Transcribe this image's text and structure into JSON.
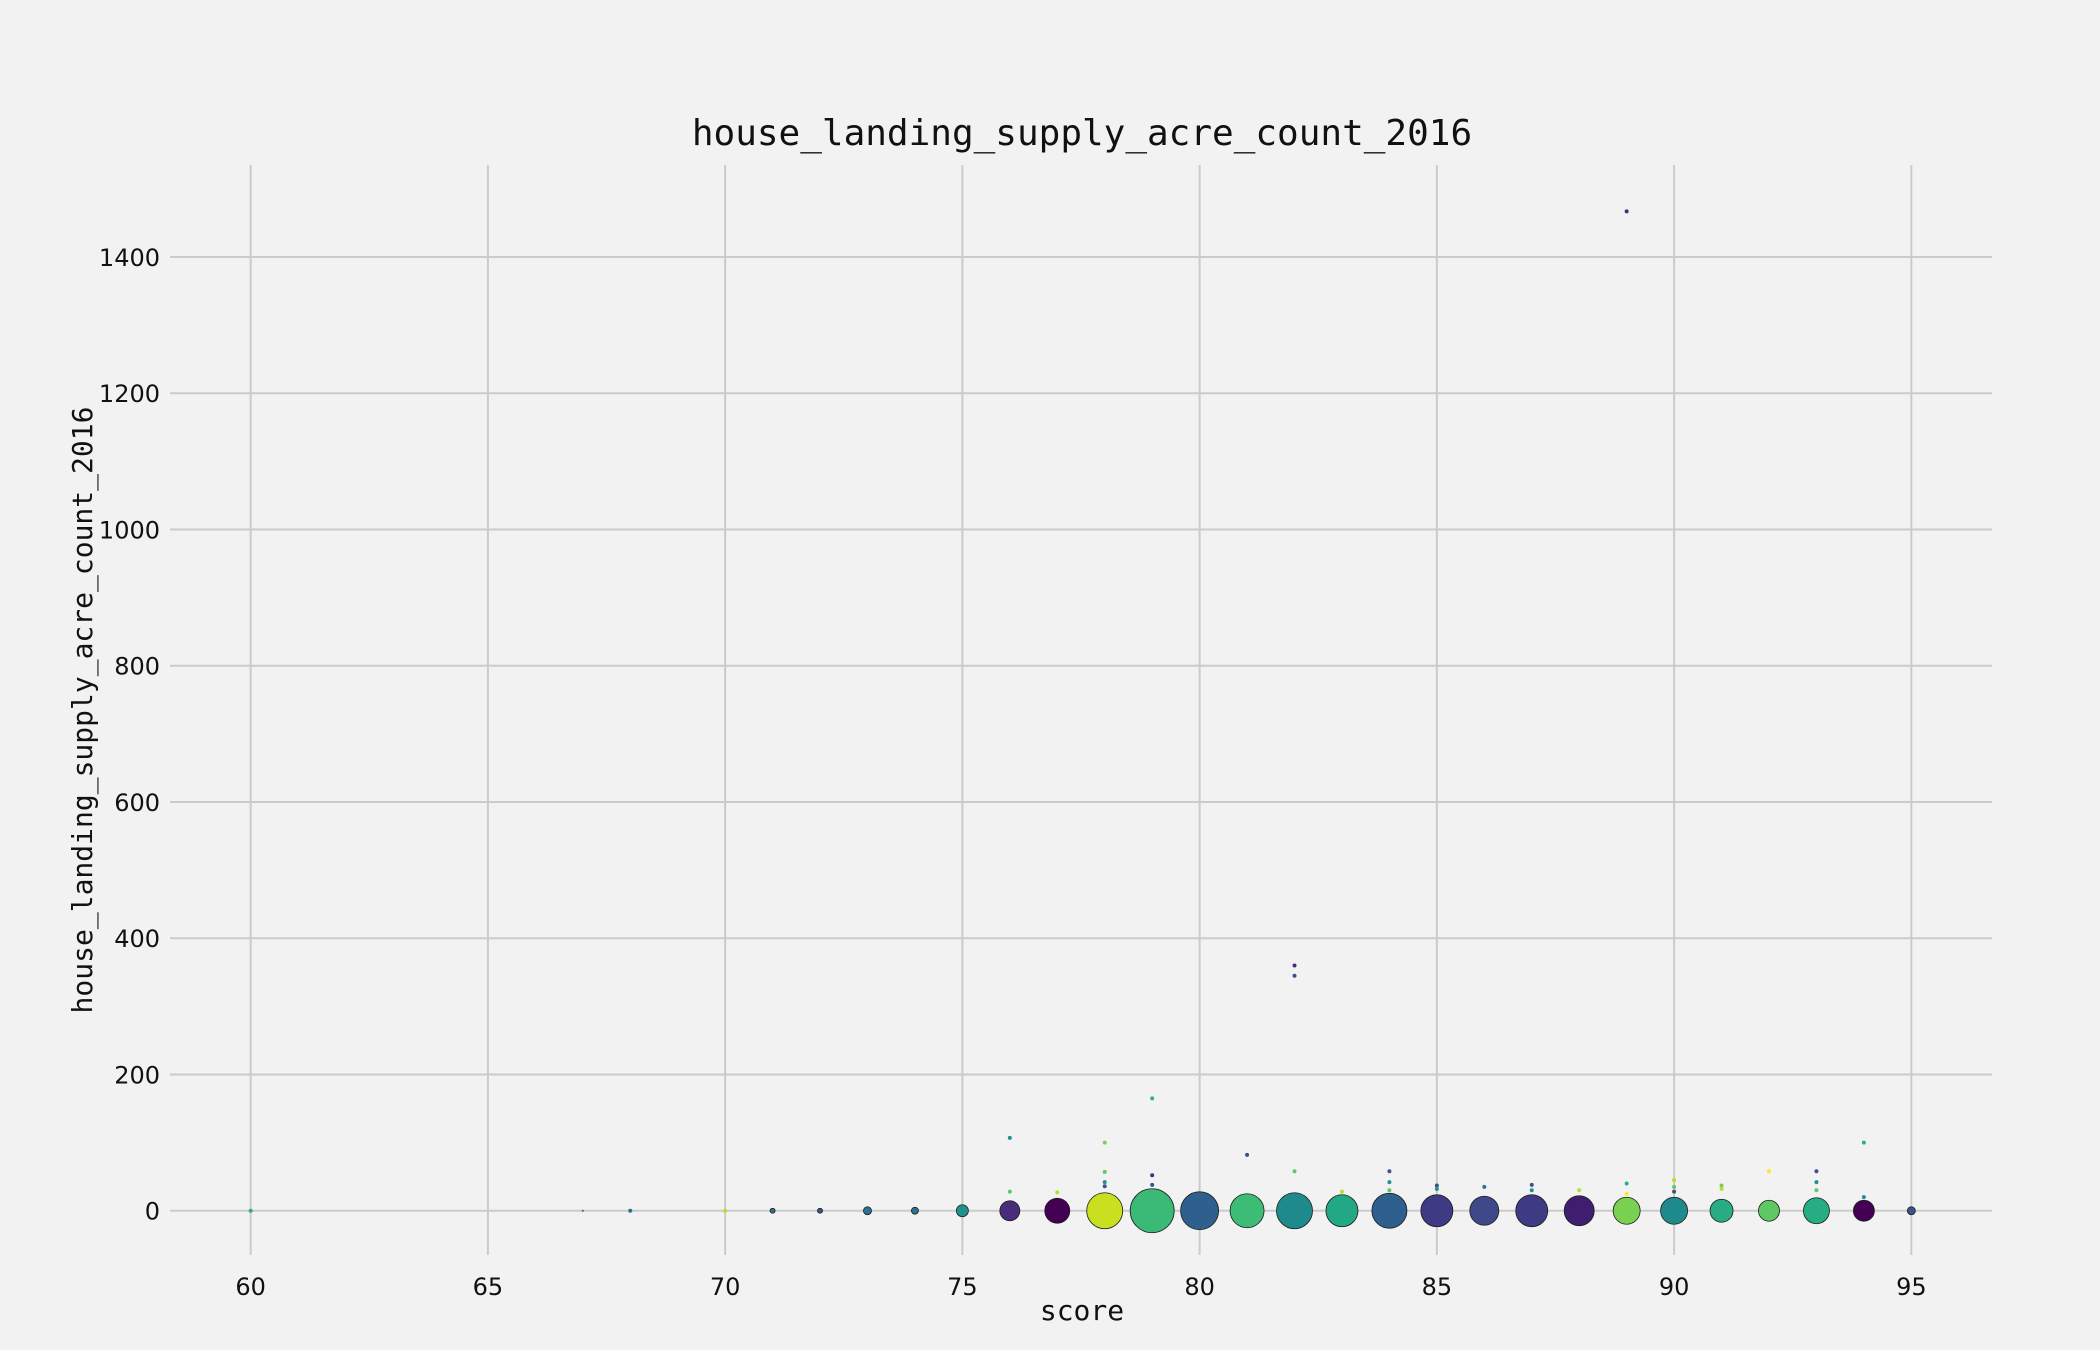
{
  "chart_data": {
    "type": "scatter",
    "title": "house_landing_supply_acre_count_2016",
    "xlabel": "score",
    "ylabel": "house_landing_supply_acre_count_2016",
    "xlim": [
      58.3,
      96.7
    ],
    "ylim": [
      -65,
      1535
    ],
    "xticks": [
      60,
      65,
      70,
      75,
      80,
      85,
      90,
      95
    ],
    "yticks": [
      0,
      200,
      400,
      600,
      800,
      1000,
      1200,
      1400
    ],
    "grid": true,
    "colormap": "viridis",
    "note": "bubble size encodes count of observations at each score",
    "series": [
      {
        "points": [
          {
            "x": 60,
            "y": 0,
            "size": 1,
            "color": "#2db27d"
          },
          {
            "x": 67,
            "y": 0,
            "size": 2,
            "color": "#3b528b"
          },
          {
            "x": 68,
            "y": 0,
            "size": 1,
            "color": "#2c728e"
          },
          {
            "x": 70,
            "y": 0,
            "size": 1,
            "color": "#b5de2b"
          },
          {
            "x": 71,
            "y": 0,
            "size": 5,
            "color": "#2c728e"
          },
          {
            "x": 72,
            "y": 0,
            "size": 5,
            "color": "#3b528b"
          },
          {
            "x": 73,
            "y": 0,
            "size": 8,
            "color": "#2c728e"
          },
          {
            "x": 74,
            "y": 0,
            "size": 7,
            "color": "#2c728e"
          },
          {
            "x": 75,
            "y": 0,
            "size": 12,
            "color": "#21918c"
          },
          {
            "x": 76,
            "y": 0,
            "size": 20,
            "color": "#472d7b"
          },
          {
            "x": 77,
            "y": 0,
            "size": 25,
            "color": "#440154"
          },
          {
            "x": 78,
            "y": 0,
            "size": 36,
            "color": "#c8e020"
          },
          {
            "x": 79,
            "y": 0,
            "size": 44,
            "color": "#3aba76"
          },
          {
            "x": 80,
            "y": 0,
            "size": 38,
            "color": "#2f5f8c"
          },
          {
            "x": 81,
            "y": 0,
            "size": 34,
            "color": "#3cbc74"
          },
          {
            "x": 82,
            "y": 0,
            "size": 36,
            "color": "#1f8a8c"
          },
          {
            "x": 83,
            "y": 0,
            "size": 32,
            "color": "#22a884"
          },
          {
            "x": 84,
            "y": 0,
            "size": 35,
            "color": "#2f5f8c"
          },
          {
            "x": 85,
            "y": 0,
            "size": 32,
            "color": "#3e3a83"
          },
          {
            "x": 86,
            "y": 0,
            "size": 29,
            "color": "#3e4989"
          },
          {
            "x": 87,
            "y": 0,
            "size": 32,
            "color": "#3e3a83"
          },
          {
            "x": 88,
            "y": 0,
            "size": 30,
            "color": "#3f1e70"
          },
          {
            "x": 89,
            "y": 0,
            "size": 27,
            "color": "#7ad151"
          },
          {
            "x": 90,
            "y": 0,
            "size": 27,
            "color": "#1f8a8c"
          },
          {
            "x": 91,
            "y": 0,
            "size": 23,
            "color": "#27ad81"
          },
          {
            "x": 92,
            "y": 0,
            "size": 21,
            "color": "#5ec962"
          },
          {
            "x": 93,
            "y": 0,
            "size": 26,
            "color": "#27ad81"
          },
          {
            "x": 94,
            "y": 0,
            "size": 21,
            "color": "#440154"
          },
          {
            "x": 95,
            "y": 0,
            "size": 8,
            "color": "#3b528b"
          },
          {
            "x": 76,
            "y": 107,
            "size": 1,
            "color": "#21918c"
          },
          {
            "x": 76,
            "y": 28,
            "size": 1,
            "color": "#5ec962"
          },
          {
            "x": 77,
            "y": 27,
            "size": 1,
            "color": "#b5de2b"
          },
          {
            "x": 78,
            "y": 100,
            "size": 1,
            "color": "#7ad151"
          },
          {
            "x": 78,
            "y": 57,
            "size": 1,
            "color": "#5ec962"
          },
          {
            "x": 78,
            "y": 42,
            "size": 1,
            "color": "#21918c"
          },
          {
            "x": 78,
            "y": 36,
            "size": 1,
            "color": "#3b528b"
          },
          {
            "x": 79,
            "y": 165,
            "size": 1,
            "color": "#2db27d"
          },
          {
            "x": 79,
            "y": 52,
            "size": 1,
            "color": "#472d7b"
          },
          {
            "x": 79,
            "y": 38,
            "size": 1,
            "color": "#3b528b"
          },
          {
            "x": 81,
            "y": 82,
            "size": 1,
            "color": "#3b528b"
          },
          {
            "x": 82,
            "y": 360,
            "size": 1,
            "color": "#472d7b"
          },
          {
            "x": 82,
            "y": 345,
            "size": 1,
            "color": "#3b528b"
          },
          {
            "x": 82,
            "y": 58,
            "size": 1,
            "color": "#5ec962"
          },
          {
            "x": 83,
            "y": 28,
            "size": 1,
            "color": "#b5de2b"
          },
          {
            "x": 84,
            "y": 58,
            "size": 1,
            "color": "#3b528b"
          },
          {
            "x": 84,
            "y": 42,
            "size": 1,
            "color": "#21918c"
          },
          {
            "x": 84,
            "y": 30,
            "size": 1,
            "color": "#5ec962"
          },
          {
            "x": 85,
            "y": 37,
            "size": 1,
            "color": "#3b528b"
          },
          {
            "x": 85,
            "y": 32,
            "size": 1,
            "color": "#21918c"
          },
          {
            "x": 86,
            "y": 35,
            "size": 1,
            "color": "#2c728e"
          },
          {
            "x": 87,
            "y": 38,
            "size": 1,
            "color": "#3b528b"
          },
          {
            "x": 87,
            "y": 30,
            "size": 1,
            "color": "#21918c"
          },
          {
            "x": 88,
            "y": 30,
            "size": 1,
            "color": "#b5de2b"
          },
          {
            "x": 89,
            "y": 1467,
            "size": 1,
            "color": "#472d7b"
          },
          {
            "x": 89,
            "y": 40,
            "size": 1,
            "color": "#2db27d"
          },
          {
            "x": 89,
            "y": 25,
            "size": 1,
            "color": "#fde725"
          },
          {
            "x": 90,
            "y": 45,
            "size": 1,
            "color": "#b5de2b"
          },
          {
            "x": 90,
            "y": 35,
            "size": 1,
            "color": "#5ec962"
          },
          {
            "x": 90,
            "y": 28,
            "size": 1,
            "color": "#3b528b"
          },
          {
            "x": 91,
            "y": 37,
            "size": 1,
            "color": "#7ad151"
          },
          {
            "x": 91,
            "y": 32,
            "size": 1,
            "color": "#b5de2b"
          },
          {
            "x": 92,
            "y": 58,
            "size": 1,
            "color": "#fde725"
          },
          {
            "x": 93,
            "y": 58,
            "size": 1,
            "color": "#3b528b"
          },
          {
            "x": 93,
            "y": 42,
            "size": 1,
            "color": "#21918c"
          },
          {
            "x": 93,
            "y": 30,
            "size": 1,
            "color": "#5ec962"
          },
          {
            "x": 94,
            "y": 100,
            "size": 1,
            "color": "#2db27d"
          },
          {
            "x": 94,
            "y": 20,
            "size": 1,
            "color": "#21918c"
          }
        ]
      }
    ]
  }
}
